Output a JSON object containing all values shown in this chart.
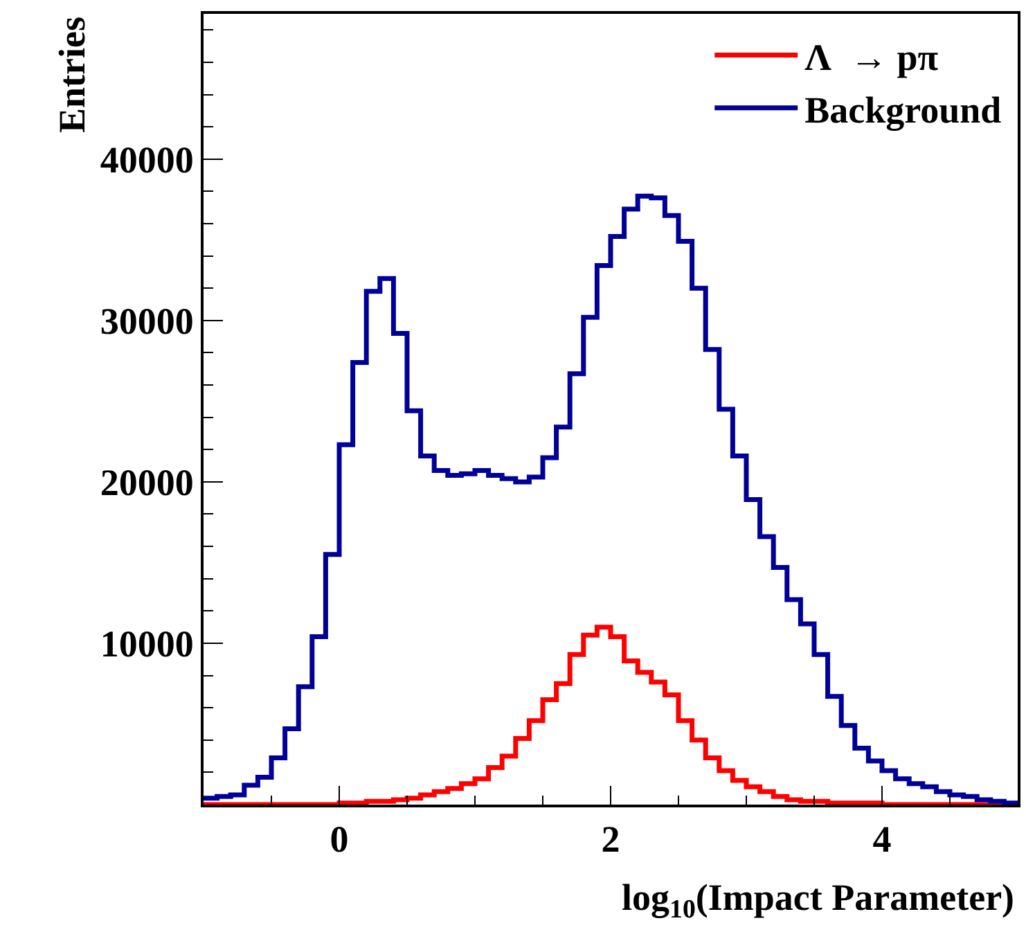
{
  "chart_data": {
    "type": "histogram",
    "xlabel": "log$_{10}$(Impact Parameter)",
    "ylabel": "Entries",
    "bins": [
      -1.0,
      -0.9,
      -0.8,
      -0.7,
      -0.6,
      -0.5,
      -0.4,
      -0.3,
      -0.2,
      -0.1,
      0.0,
      0.1,
      0.2,
      0.3,
      0.4,
      0.5,
      0.6,
      0.7,
      0.8,
      0.9,
      1.0,
      1.1,
      1.2,
      1.3,
      1.4,
      1.5,
      1.6,
      1.7,
      1.8,
      1.9,
      2.0,
      2.1,
      2.2,
      2.3,
      2.4,
      2.5,
      2.6,
      2.7,
      2.8,
      2.9,
      3.0,
      3.1,
      3.2,
      3.3,
      3.4,
      3.5,
      3.6,
      3.7,
      3.8,
      3.9,
      4.0,
      4.1,
      4.2,
      4.3,
      4.4,
      4.5,
      4.6,
      4.7,
      4.8,
      4.9,
      5.0
    ],
    "series": [
      {
        "name": "Λ  → pπ",
        "color": "#ff0000",
        "values": [
          0,
          0,
          0,
          0,
          0,
          0,
          0,
          0,
          0,
          0,
          100,
          100,
          200,
          200,
          300,
          400,
          600,
          800,
          1000,
          1300,
          1600,
          2300,
          3000,
          4100,
          5200,
          6500,
          7500,
          9300,
          10500,
          11000,
          10400,
          8900,
          8200,
          7600,
          6800,
          5200,
          4000,
          2900,
          2100,
          1500,
          1100,
          800,
          500,
          300,
          200,
          200,
          100,
          100,
          100,
          100,
          0,
          0,
          0,
          0,
          0,
          0,
          0,
          0,
          0,
          0
        ]
      },
      {
        "name": "Background",
        "color": "#000099",
        "values": [
          400,
          500,
          600,
          1200,
          1700,
          2900,
          4700,
          7300,
          10400,
          15500,
          22300,
          27400,
          31800,
          32600,
          29200,
          24400,
          21600,
          20700,
          20400,
          20500,
          20700,
          20400,
          20200,
          20000,
          20300,
          21500,
          23400,
          26700,
          30200,
          33400,
          35200,
          36900,
          37700,
          37600,
          36500,
          34900,
          32000,
          28200,
          24500,
          21600,
          18900,
          16600,
          14700,
          12700,
          11200,
          9300,
          6700,
          4900,
          3500,
          2700,
          2100,
          1600,
          1300,
          1100,
          800,
          600,
          500,
          300,
          200,
          100
        ]
      }
    ],
    "xlim": [
      -1,
      5
    ],
    "xticks": [
      0,
      2,
      4
    ],
    "ylim": [
      0,
      49000
    ],
    "yticks": [
      10000,
      20000,
      30000,
      40000
    ],
    "legend": "top right"
  }
}
